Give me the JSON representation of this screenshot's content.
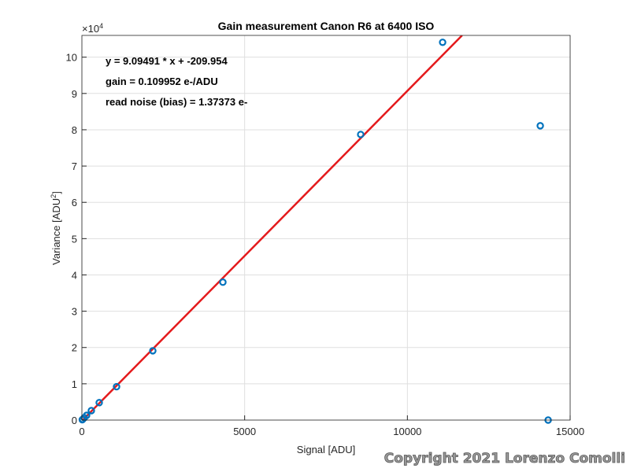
{
  "chart_data": {
    "type": "scatter",
    "title": "Gain measurement Canon R6 at 6400 ISO",
    "x_label": "Signal [ADU]",
    "y_label": "Variance [ADU",
    "y_label_sup": "2",
    "y_label_end": "]",
    "y_multiplier": "×10",
    "y_multiplier_exp": "4",
    "annotations": [
      "y = 9.09491 * x + -209.954",
      "gain = 0.109952 e-/ADU",
      "read noise (bias) = 1.37373 e-"
    ],
    "copyright": "Copyright 2021 Lorenzo Comolli",
    "xlim": [
      0,
      15000
    ],
    "ylim": [
      0,
      10.6
    ],
    "xticks": [
      0,
      5000,
      10000,
      15000
    ],
    "yticks": [
      0,
      1,
      2,
      3,
      4,
      5,
      6,
      7,
      8,
      9,
      10
    ],
    "grid": true,
    "series": [
      {
        "color": "#0072bd",
        "x": [
          12,
          24,
          73,
          145,
          290,
          532,
          1065,
          2178,
          4331,
          8565,
          11082,
          14082,
          14324
        ],
        "values": [
          0.01,
          0.02,
          0.065,
          0.13,
          0.26,
          0.48,
          0.92,
          1.91,
          3.8,
          7.87,
          10.41,
          8.11,
          0
        ]
      }
    ],
    "fit_line": {
      "color": "#e41a1c",
      "x": [
        0,
        11680
      ],
      "values": [
        -0.021,
        10.6
      ]
    }
  }
}
